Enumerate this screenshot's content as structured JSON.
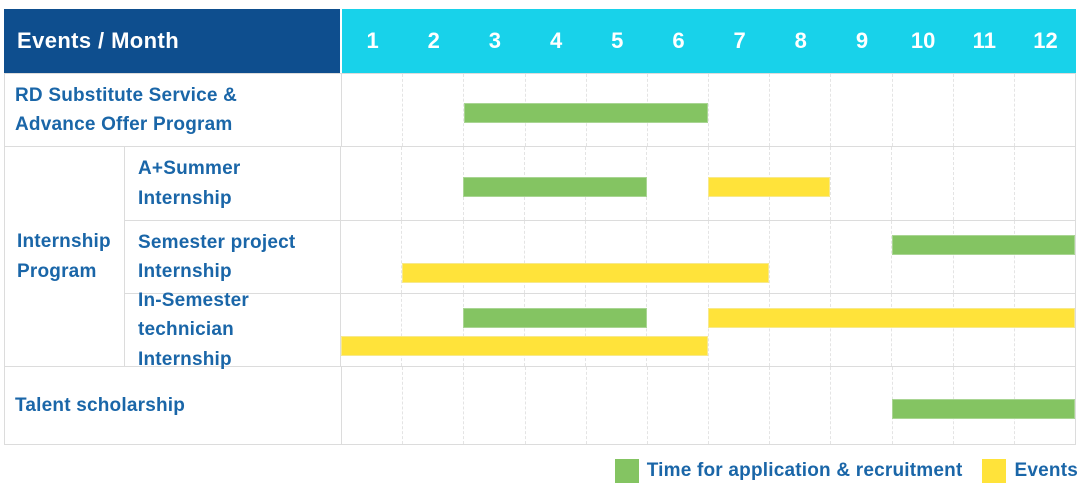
{
  "header": {
    "corner_label": "Events / Month"
  },
  "months": [
    "1",
    "2",
    "3",
    "4",
    "5",
    "6",
    "7",
    "8",
    "9",
    "10",
    "11",
    "12"
  ],
  "colors": {
    "header_bg": "#0e4e8e",
    "months_bg": "#18d2ea",
    "label_text": "#1a66a8",
    "application_green": "#84c462",
    "events_yellow": "#ffe33a",
    "grid_border": "#dcdcdc"
  },
  "legend": {
    "items": [
      {
        "key": "application",
        "label": "Time for application & recruitment",
        "color": "#84c462"
      },
      {
        "key": "events",
        "label": "Events",
        "color": "#ffe33a"
      }
    ]
  },
  "chart_data": {
    "type": "bar",
    "subtype": "gantt-schedule",
    "title": "Events / Month",
    "xlabel": "Month",
    "x_ticks": [
      1,
      2,
      3,
      4,
      5,
      6,
      7,
      8,
      9,
      10,
      11,
      12
    ],
    "x_range": [
      1,
      12
    ],
    "grid": "dashed-monthly",
    "legend_position": "bottom-right",
    "legend_entries": [
      "Time for application & recruitment",
      "Events"
    ],
    "tasks": [
      {
        "group": "",
        "name": "RD Substitute Service & Advance Offer Program",
        "bars": [
          {
            "category": "application",
            "start_month": 3,
            "end_month": 6,
            "level": "mid"
          }
        ]
      },
      {
        "group": "Internship Program",
        "name": "A+Summer Internship",
        "bars": [
          {
            "category": "application",
            "start_month": 3,
            "end_month": 5,
            "level": "mid"
          },
          {
            "category": "events",
            "start_month": 7,
            "end_month": 8,
            "level": "mid"
          }
        ]
      },
      {
        "group": "Internship Program",
        "name": "Semester project Internship",
        "bars": [
          {
            "category": "application",
            "start_month": 10,
            "end_month": 12,
            "level": "upper"
          },
          {
            "category": "events",
            "start_month": 2,
            "end_month": 7,
            "level": "lower"
          }
        ]
      },
      {
        "group": "Internship Program",
        "name": "In-Semester technician Internship",
        "bars": [
          {
            "category": "application",
            "start_month": 3,
            "end_month": 5,
            "level": "upper"
          },
          {
            "category": "events",
            "start_month": 7,
            "end_month": 12,
            "level": "upper"
          },
          {
            "category": "events",
            "start_month": 1,
            "end_month": 6,
            "level": "lower"
          }
        ]
      },
      {
        "group": "",
        "name": "Talent scholarship",
        "bars": [
          {
            "category": "application",
            "start_month": 10,
            "end_month": 12,
            "level": "mid"
          }
        ]
      }
    ]
  }
}
